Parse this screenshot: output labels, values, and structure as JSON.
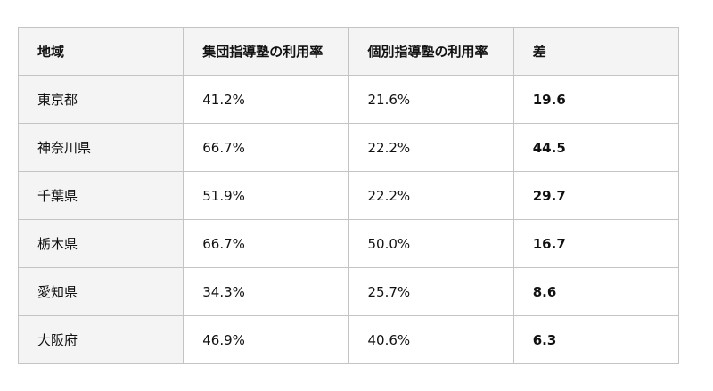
{
  "table": {
    "headers": [
      "地域",
      "集団指導塾の利用率",
      "個別指導塾の利用率",
      "差"
    ],
    "rows": [
      {
        "region": "東京都",
        "group": "41.2%",
        "individual": "21.6%",
        "diff": "19.6"
      },
      {
        "region": "神奈川県",
        "group": "66.7%",
        "individual": "22.2%",
        "diff": "44.5"
      },
      {
        "region": "千葉県",
        "group": "51.9%",
        "individual": "22.2%",
        "diff": "29.7"
      },
      {
        "region": "栃木県",
        "group": "66.7%",
        "individual": "50.0%",
        "diff": "16.7"
      },
      {
        "region": "愛知県",
        "group": "34.3%",
        "individual": "25.7%",
        "diff": "8.6"
      },
      {
        "region": "大阪府",
        "group": "46.9%",
        "individual": "40.6%",
        "diff": "6.3"
      }
    ]
  }
}
